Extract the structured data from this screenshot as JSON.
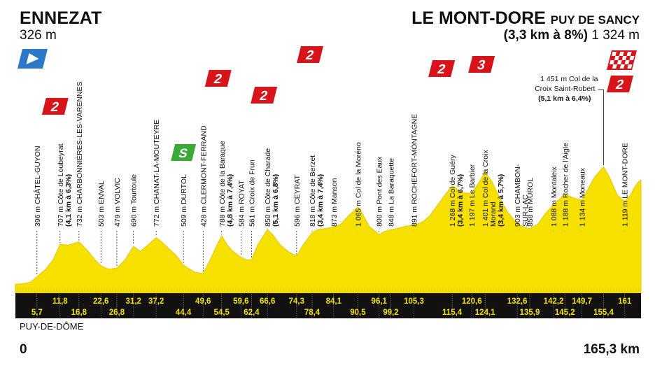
{
  "start": {
    "name": "ENNEZAT",
    "altitude": "326 m"
  },
  "finish": {
    "name": "LE MONT-DORE",
    "suffix": "PUY DE SANCY",
    "climb": "(3,3 km à 8%)",
    "altitude": "1 324 m"
  },
  "region": "PUY-DE-DÔME",
  "distance_start": "0",
  "distance_total": "165,3 km",
  "colors": {
    "profile": "#f6e000",
    "profile_edge": "#e9c400",
    "band": "#111111",
    "km_text": "#f6e000",
    "climb_badge": "#d7141a",
    "sprint_badge": "#3aa935",
    "start_flag": "#2b78c8"
  },
  "chart_data": {
    "type": "area",
    "xlim": [
      0,
      165.3
    ],
    "ylim": [
      0,
      1500
    ],
    "grid": false,
    "profile": [
      [
        0,
        326
      ],
      [
        2,
        330
      ],
      [
        4,
        345
      ],
      [
        5.7,
        396
      ],
      [
        8,
        470
      ],
      [
        10,
        560
      ],
      [
        11.8,
        707
      ],
      [
        14,
        700
      ],
      [
        16.8,
        732
      ],
      [
        19,
        650
      ],
      [
        21,
        560
      ],
      [
        22.6,
        503
      ],
      [
        24.5,
        470
      ],
      [
        26.8,
        479
      ],
      [
        29,
        560
      ],
      [
        31.2,
        690
      ],
      [
        33,
        640
      ],
      [
        35,
        700
      ],
      [
        37.2,
        772
      ],
      [
        39,
        720
      ],
      [
        41,
        650
      ],
      [
        42.5,
        600
      ],
      [
        44.4,
        509
      ],
      [
        46,
        470
      ],
      [
        47.5,
        440
      ],
      [
        49.6,
        428
      ],
      [
        51.5,
        560
      ],
      [
        53,
        680
      ],
      [
        54.5,
        788
      ],
      [
        56,
        700
      ],
      [
        57.5,
        640
      ],
      [
        59.6,
        584
      ],
      [
        61,
        560
      ],
      [
        62.4,
        561
      ],
      [
        64,
        700
      ],
      [
        66.6,
        850
      ],
      [
        68,
        800
      ],
      [
        70,
        700
      ],
      [
        72,
        640
      ],
      [
        74.3,
        596
      ],
      [
        76,
        700
      ],
      [
        78.4,
        818
      ],
      [
        80,
        850
      ],
      [
        82,
        860
      ],
      [
        84.1,
        873
      ],
      [
        86,
        900
      ],
      [
        88,
        980
      ],
      [
        90.5,
        1065
      ],
      [
        92,
        980
      ],
      [
        93.5,
        880
      ],
      [
        96.1,
        800
      ],
      [
        97.5,
        830
      ],
      [
        99.2,
        848
      ],
      [
        101,
        860
      ],
      [
        103,
        880
      ],
      [
        105.3,
        891
      ],
      [
        107.5,
        920
      ],
      [
        109.5,
        980
      ],
      [
        111.5,
        1080
      ],
      [
        113.5,
        1180
      ],
      [
        115.4,
        1268
      ],
      [
        117,
        1230
      ],
      [
        118.5,
        1200
      ],
      [
        120.6,
        1197
      ],
      [
        122.5,
        1300
      ],
      [
        124.1,
        1401
      ],
      [
        126,
        1300
      ],
      [
        128,
        1150
      ],
      [
        130,
        1020
      ],
      [
        132.6,
        903
      ],
      [
        134.5,
        870
      ],
      [
        135.9,
        858
      ],
      [
        138,
        900
      ],
      [
        140,
        1000
      ],
      [
        142.2,
        1088
      ],
      [
        143.5,
        1130
      ],
      [
        145.2,
        1188
      ],
      [
        147.5,
        1150
      ],
      [
        149.7,
        1134
      ],
      [
        151.5,
        1250
      ],
      [
        153,
        1350
      ],
      [
        155.4,
        1451
      ],
      [
        157,
        1350
      ],
      [
        159,
        1180
      ],
      [
        161,
        1119
      ],
      [
        162.5,
        1180
      ],
      [
        163.5,
        1250
      ],
      [
        164.5,
        1300
      ],
      [
        165.3,
        1324
      ]
    ],
    "km_labels": [
      {
        "km": 5.7,
        "text": "5,7",
        "row": "bottom"
      },
      {
        "km": 11.8,
        "text": "11,8",
        "row": "top"
      },
      {
        "km": 16.8,
        "text": "16,8",
        "row": "bottom"
      },
      {
        "km": 22.6,
        "text": "22,6",
        "row": "top"
      },
      {
        "km": 26.8,
        "text": "26,8",
        "row": "bottom"
      },
      {
        "km": 31.2,
        "text": "31,2",
        "row": "top"
      },
      {
        "km": 37.2,
        "text": "37,2",
        "row": "top"
      },
      {
        "km": 44.4,
        "text": "44,4",
        "row": "bottom"
      },
      {
        "km": 49.6,
        "text": "49,6",
        "row": "top"
      },
      {
        "km": 54.5,
        "text": "54,5",
        "row": "bottom"
      },
      {
        "km": 59.6,
        "text": "59,6",
        "row": "top"
      },
      {
        "km": 62.4,
        "text": "62,4",
        "row": "bottom"
      },
      {
        "km": 66.6,
        "text": "66,6",
        "row": "top"
      },
      {
        "km": 74.3,
        "text": "74,3",
        "row": "top"
      },
      {
        "km": 78.4,
        "text": "78,4",
        "row": "bottom"
      },
      {
        "km": 84.1,
        "text": "84,1",
        "row": "top"
      },
      {
        "km": 90.5,
        "text": "90,5",
        "row": "bottom"
      },
      {
        "km": 96.1,
        "text": "96,1",
        "row": "top"
      },
      {
        "km": 99.2,
        "text": "99,2",
        "row": "bottom"
      },
      {
        "km": 105.3,
        "text": "105,3",
        "row": "top"
      },
      {
        "km": 115.4,
        "text": "115,4",
        "row": "bottom"
      },
      {
        "km": 120.6,
        "text": "120,6",
        "row": "top"
      },
      {
        "km": 124.1,
        "text": "124,1",
        "row": "bottom"
      },
      {
        "km": 132.6,
        "text": "132,6",
        "row": "top"
      },
      {
        "km": 135.9,
        "text": "135,9",
        "row": "bottom"
      },
      {
        "km": 142.2,
        "text": "142,2",
        "row": "top"
      },
      {
        "km": 145.2,
        "text": "145,2",
        "row": "bottom"
      },
      {
        "km": 149.7,
        "text": "149,7",
        "row": "top"
      },
      {
        "km": 155.4,
        "text": "155,4",
        "row": "bottom"
      },
      {
        "km": 161,
        "text": "161",
        "row": "top"
      }
    ],
    "waypoints": [
      {
        "km": 5.7,
        "alt": 396,
        "text": "396 m CHÂTEL-GUYON"
      },
      {
        "km": 11.8,
        "alt": 707,
        "text": "707 m Côte de Loubeyrat",
        "extra": "(4,1 km à 6,3%)",
        "climb": "2"
      },
      {
        "km": 16.8,
        "alt": 732,
        "text": "732 m CHARBONNIÈRES-LES-VARENNES"
      },
      {
        "km": 22.6,
        "alt": 503,
        "text": "503 m ENVAL"
      },
      {
        "km": 26.8,
        "alt": 479,
        "text": "479 m VOLVIC"
      },
      {
        "km": 31.2,
        "alt": 690,
        "text": "690 m Tourtoule"
      },
      {
        "km": 37.2,
        "alt": 772,
        "text": "772 m CHANAT-LA-MOUTEYRE"
      },
      {
        "km": 44.4,
        "alt": 509,
        "text": "509 m DURTOL",
        "sprint": "S"
      },
      {
        "km": 49.6,
        "alt": 428,
        "text": "428 m CLERMONT-FERRAND"
      },
      {
        "km": 54.5,
        "alt": 788,
        "text": "788 m Côte de la Baraque",
        "extra": "(4,8 km à 7,4%)",
        "climb": "2"
      },
      {
        "km": 59.6,
        "alt": 584,
        "text": "584 m ROYAT"
      },
      {
        "km": 62.4,
        "alt": 561,
        "text": "561 m Croix de Frun"
      },
      {
        "km": 66.6,
        "alt": 850,
        "text": "850 m Côte de Charade",
        "extra": "(5,1 km à 6,8%)",
        "climb": "2"
      },
      {
        "km": 74.3,
        "alt": 596,
        "text": "596 m CEYRAT"
      },
      {
        "km": 78.4,
        "alt": 818,
        "text": "818 m Côte de Berzet",
        "extra": "(3,4 km à 7,4%)",
        "climb": "2"
      },
      {
        "km": 84.1,
        "alt": 873,
        "text": "873 m Manson"
      },
      {
        "km": 90.5,
        "alt": 1065,
        "text": "1 065 m Col de la Moréno"
      },
      {
        "km": 96.1,
        "alt": 800,
        "text": "800 m Pont des Eaux"
      },
      {
        "km": 99.2,
        "alt": 848,
        "text": "848 m La Baraquette"
      },
      {
        "km": 105.3,
        "alt": 891,
        "text": "891 m ROCHEFORT-MONTAGNE"
      },
      {
        "km": 115.4,
        "alt": 1268,
        "text": "1 268 m Col de Guéry",
        "extra": "(3,4 km à 6,7%)",
        "climb": "2"
      },
      {
        "km": 120.6,
        "alt": 1197,
        "text": "1 197 m Le Barbier"
      },
      {
        "km": 124.1,
        "alt": 1401,
        "text": "1 401 m Col de la Croix",
        "text2": "Morand",
        "extra": "(3,4 km à 5,7%)",
        "climb": "3"
      },
      {
        "km": 132.6,
        "alt": 903,
        "text": "903 m CHAMBON-",
        "text2": "SUR-LAC"
      },
      {
        "km": 135.9,
        "alt": 858,
        "text": "858 m MUROL"
      },
      {
        "km": 142.2,
        "alt": 1088,
        "text": "1 088 m Montaleix"
      },
      {
        "km": 145.2,
        "alt": 1188,
        "text": "1 188 m Rocher de l'Aigle"
      },
      {
        "km": 149.7,
        "alt": 1134,
        "text": "1 134 m Moneaux"
      },
      {
        "km": 155.4,
        "alt": 1451,
        "text": "1 451 m Col de la",
        "text2": "Croix Saint-Robert",
        "extra": "(5,1 km à 6,4%)",
        "climb": "2"
      },
      {
        "km": 161,
        "alt": 1119,
        "text": "1 119 m LE MONT-DORE"
      }
    ],
    "finish_climb": "2"
  }
}
